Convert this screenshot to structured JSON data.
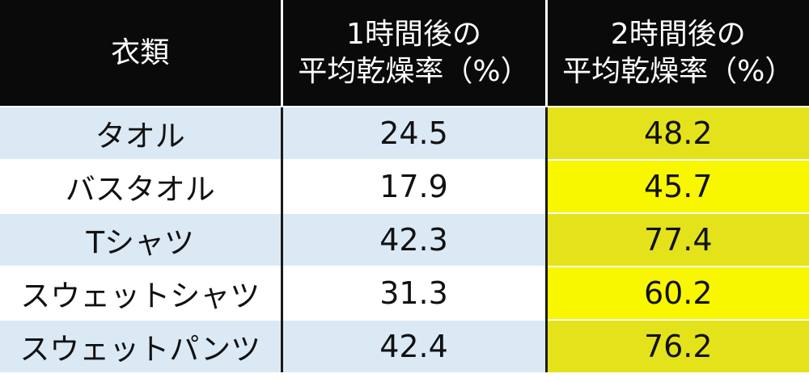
{
  "table": {
    "headers": {
      "category": "衣類",
      "after1h_line1": "1時間後の",
      "after1h_line2": "平均乾燥率（%）",
      "after2h_line1": "2時間後の",
      "after2h_line2": "平均乾燥率（%）"
    },
    "rows": [
      {
        "item": "タオル",
        "after1h": "24.5",
        "after2h": "48.2"
      },
      {
        "item": "バスタオル",
        "after1h": "17.9",
        "after2h": "45.7"
      },
      {
        "item": "Tシャツ",
        "after1h": "42.3",
        "after2h": "77.4"
      },
      {
        "item": "スウェットシャツ",
        "after1h": "31.3",
        "after2h": "60.2"
      },
      {
        "item": "スウェットパンツ",
        "after1h": "42.4",
        "after2h": "76.2"
      }
    ]
  },
  "colors": {
    "header_bg": "#0a0a0a",
    "header_text": "#ffffff",
    "row_blue": "#dbe9f5",
    "highlight_yellow": "#f9f700",
    "highlight_yellow_alt": "#e4e31b"
  }
}
